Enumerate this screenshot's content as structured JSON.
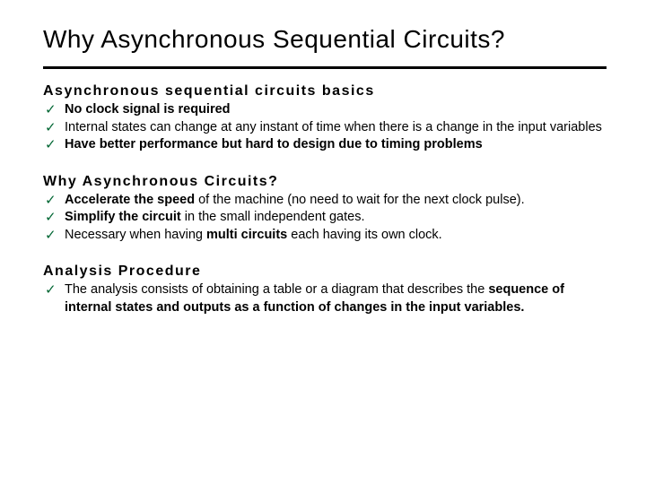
{
  "colors": {
    "background": "#ffffff",
    "text": "#000000",
    "checkmark": "#006633",
    "rule": "#000000"
  },
  "typography": {
    "family": "Comic Sans MS",
    "title_fontsize": 28,
    "heading_fontsize": 16,
    "body_fontsize": 14.5
  },
  "title": "Why Asynchronous Sequential Circuits?",
  "sections": [
    {
      "heading": "Asynchronous  sequential  circuits  basics",
      "items": [
        {
          "text": "No clock signal is required",
          "bold": true
        },
        {
          "text": "Internal states can change at any instant of time when there is a change in the input variables",
          "bold": false
        },
        {
          "text": "Have better performance but hard to design due to timing problems",
          "bold": true
        }
      ]
    },
    {
      "heading": "Why  Asynchronous  Circuits?",
      "items": [
        {
          "prefix": "Accelerate the speed",
          "rest": " of the machine (no need to wait for the next clock pulse)."
        },
        {
          "prefix": "Simplify the circuit",
          "rest": " in the small independent gates."
        },
        {
          "prefix": "Necessary when having ",
          "mid": "multi circuits",
          "rest": " each having its own clock."
        }
      ]
    },
    {
      "heading": "Analysis  Procedure",
      "items": [
        {
          "prefix": "The analysis consists of obtaining a table or a diagram that describes the ",
          "bold_part": "sequence of internal states and outputs as a function of changes in the input variables."
        }
      ]
    }
  ]
}
